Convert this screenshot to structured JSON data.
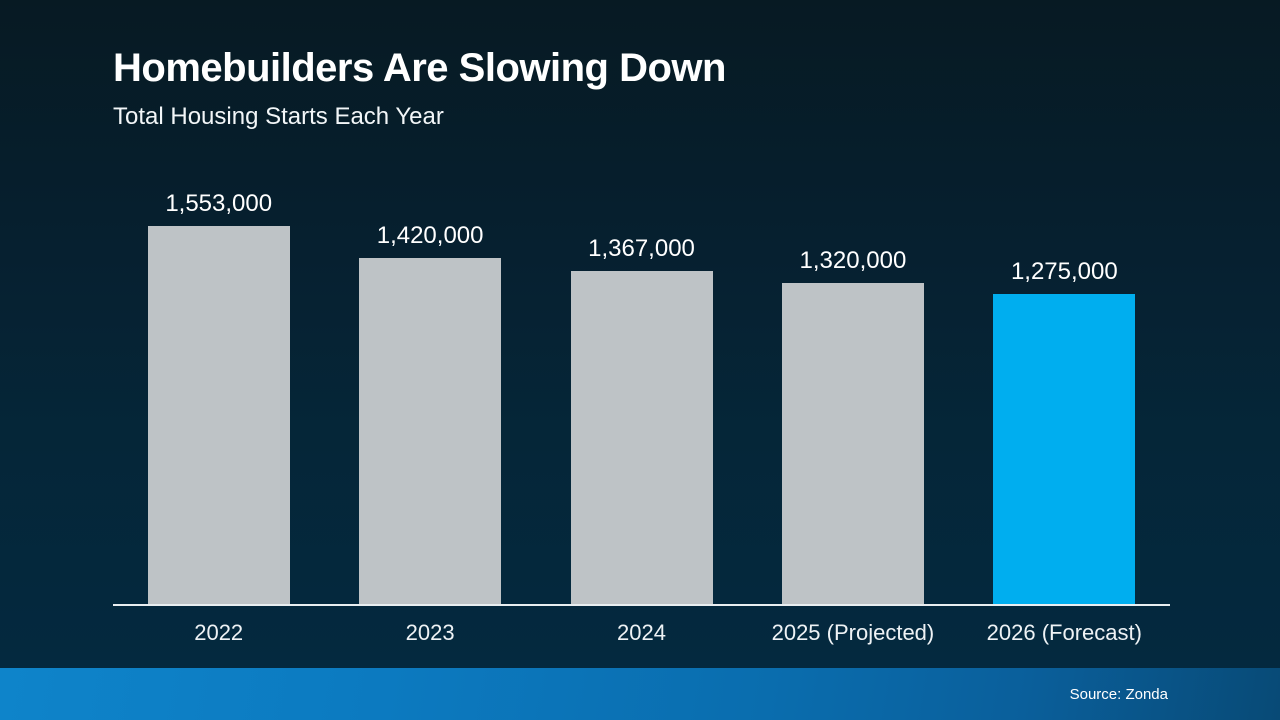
{
  "header": {
    "title": "Homebuilders Are Slowing Down",
    "subtitle": "Total Housing Starts Each Year"
  },
  "footer": {
    "source_label": "Source: Zonda"
  },
  "chart_data": {
    "type": "bar",
    "title": "Homebuilders Are Slowing Down",
    "subtitle": "Total Housing Starts Each Year",
    "categories": [
      "2022",
      "2023",
      "2024",
      "2025 (Projected)",
      "2026 (Forecast)"
    ],
    "values": [
      1553000,
      1420000,
      1367000,
      1320000,
      1275000
    ],
    "value_labels": [
      "1,553,000",
      "1,420,000",
      "1,367,000",
      "1,320,000",
      "1,275,000"
    ],
    "bar_colors": [
      "#bec3c6",
      "#bec3c6",
      "#bec3c6",
      "#bec3c6",
      "#00aeef"
    ],
    "highlight_index": 4,
    "xlabel": "",
    "ylabel": "",
    "ylim": [
      0,
      1553000
    ],
    "grid": false,
    "legend": false,
    "source": "Source: Zonda",
    "colors": {
      "bar_default": "#bec3c6",
      "bar_highlight": "#00aeef",
      "axis_line": "#e9eef1",
      "background_top": "#071a23",
      "background_bottom": "#04293f",
      "footer_gradient_start": "#0e84ca",
      "footer_gradient_end": "#084a76",
      "text": "#ffffff"
    }
  }
}
